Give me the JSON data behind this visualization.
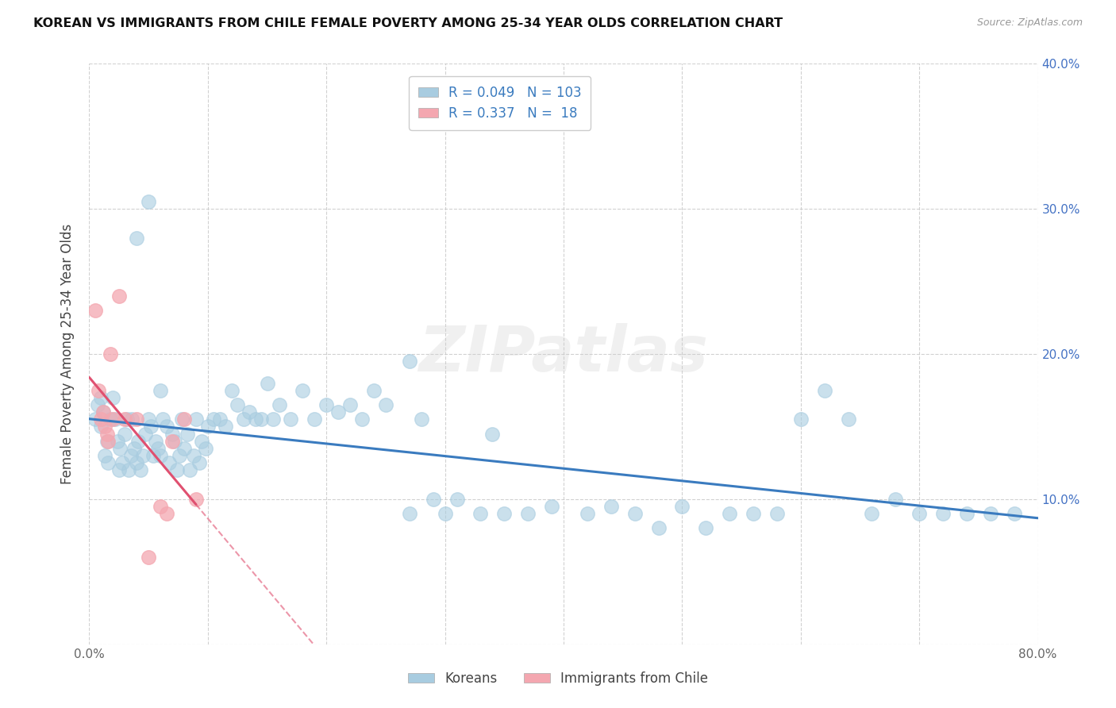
{
  "title": "KOREAN VS IMMIGRANTS FROM CHILE FEMALE POVERTY AMONG 25-34 YEAR OLDS CORRELATION CHART",
  "source": "Source: ZipAtlas.com",
  "ylabel": "Female Poverty Among 25-34 Year Olds",
  "x_min": 0.0,
  "x_max": 0.8,
  "y_min": 0.0,
  "y_max": 0.4,
  "korean_color": "#a8cce0",
  "chile_color": "#f4a7b0",
  "korean_R": 0.049,
  "korean_N": 103,
  "chile_R": 0.337,
  "chile_N": 18,
  "trend_korean_color": "#3a7bbf",
  "trend_chile_color": "#e05070",
  "legend_label_korean": "Koreans",
  "legend_label_chile": "Immigrants from Chile",
  "watermark": "ZIPatlas",
  "korean_x": [
    0.005,
    0.007,
    0.01,
    0.01,
    0.012,
    0.013,
    0.015,
    0.016,
    0.018,
    0.02,
    0.022,
    0.024,
    0.025,
    0.026,
    0.028,
    0.03,
    0.032,
    0.033,
    0.035,
    0.036,
    0.038,
    0.04,
    0.041,
    0.043,
    0.045,
    0.047,
    0.05,
    0.052,
    0.054,
    0.056,
    0.058,
    0.06,
    0.062,
    0.065,
    0.067,
    0.07,
    0.072,
    0.074,
    0.076,
    0.078,
    0.08,
    0.083,
    0.085,
    0.088,
    0.09,
    0.093,
    0.095,
    0.098,
    0.1,
    0.105,
    0.11,
    0.115,
    0.12,
    0.125,
    0.13,
    0.135,
    0.14,
    0.145,
    0.15,
    0.155,
    0.16,
    0.17,
    0.18,
    0.19,
    0.2,
    0.21,
    0.22,
    0.23,
    0.24,
    0.25,
    0.27,
    0.29,
    0.3,
    0.31,
    0.33,
    0.35,
    0.37,
    0.39,
    0.42,
    0.44,
    0.46,
    0.48,
    0.5,
    0.52,
    0.54,
    0.56,
    0.58,
    0.6,
    0.62,
    0.64,
    0.66,
    0.68,
    0.7,
    0.72,
    0.74,
    0.76,
    0.78,
    0.04,
    0.05,
    0.06,
    0.27,
    0.28,
    0.34
  ],
  "korean_y": [
    0.155,
    0.165,
    0.17,
    0.15,
    0.16,
    0.13,
    0.14,
    0.125,
    0.155,
    0.17,
    0.155,
    0.14,
    0.12,
    0.135,
    0.125,
    0.145,
    0.155,
    0.12,
    0.13,
    0.155,
    0.135,
    0.125,
    0.14,
    0.12,
    0.13,
    0.145,
    0.155,
    0.15,
    0.13,
    0.14,
    0.135,
    0.13,
    0.155,
    0.15,
    0.125,
    0.145,
    0.14,
    0.12,
    0.13,
    0.155,
    0.135,
    0.145,
    0.12,
    0.13,
    0.155,
    0.125,
    0.14,
    0.135,
    0.15,
    0.155,
    0.155,
    0.15,
    0.175,
    0.165,
    0.155,
    0.16,
    0.155,
    0.155,
    0.18,
    0.155,
    0.165,
    0.155,
    0.175,
    0.155,
    0.165,
    0.16,
    0.165,
    0.155,
    0.175,
    0.165,
    0.09,
    0.1,
    0.09,
    0.1,
    0.09,
    0.09,
    0.09,
    0.095,
    0.09,
    0.095,
    0.09,
    0.08,
    0.095,
    0.08,
    0.09,
    0.09,
    0.09,
    0.155,
    0.175,
    0.155,
    0.09,
    0.1,
    0.09,
    0.09,
    0.09,
    0.09,
    0.09,
    0.28,
    0.305,
    0.175,
    0.195,
    0.155,
    0.145
  ],
  "chile_x": [
    0.005,
    0.008,
    0.01,
    0.012,
    0.013,
    0.015,
    0.016,
    0.018,
    0.02,
    0.025,
    0.03,
    0.04,
    0.05,
    0.06,
    0.065,
    0.07,
    0.08,
    0.09
  ],
  "chile_y": [
    0.23,
    0.175,
    0.155,
    0.16,
    0.15,
    0.145,
    0.14,
    0.2,
    0.155,
    0.24,
    0.155,
    0.155,
    0.06,
    0.095,
    0.09,
    0.14,
    0.155,
    0.1
  ]
}
